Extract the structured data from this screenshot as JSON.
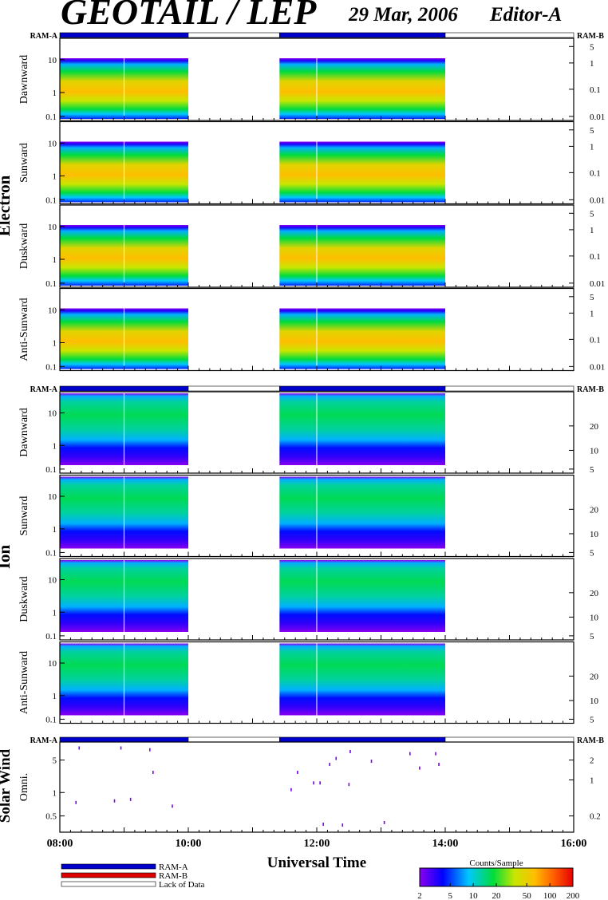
{
  "header": {
    "title": "GEOTAIL / LEP",
    "date": "29 Mar, 2006",
    "editor": "Editor-A"
  },
  "ram_labels": {
    "left": "RAM-A",
    "right": "RAM-B"
  },
  "groups": [
    {
      "name": "Electron",
      "panels": [
        {
          "label": "Dawnward",
          "left_ticks": [
            "10",
            "1",
            "0.1"
          ],
          "right_ticks": [
            "5",
            "1",
            "0.1",
            "0.01"
          ]
        },
        {
          "label": "Sunward",
          "left_ticks": [
            "10",
            "1",
            "0.1"
          ],
          "right_ticks": [
            "5",
            "1",
            "0.1",
            "0.01"
          ]
        },
        {
          "label": "Duskward",
          "left_ticks": [
            "10",
            "1",
            "0.1"
          ],
          "right_ticks": [
            "5",
            "1",
            "0.1",
            "0.01"
          ]
        },
        {
          "label": "Anti-Sunward",
          "left_ticks": [
            "10",
            "1",
            "0.1"
          ],
          "right_ticks": [
            "5",
            "1",
            "0.1",
            "0.01"
          ]
        }
      ]
    },
    {
      "name": "Ion",
      "panels": [
        {
          "label": "Dawnward",
          "left_ticks": [
            "10",
            "1",
            "0.1"
          ],
          "right_ticks": [
            "20",
            "10",
            "5"
          ]
        },
        {
          "label": "Sunward",
          "left_ticks": [
            "10",
            "1",
            "0.1"
          ],
          "right_ticks": [
            "20",
            "10",
            "5"
          ]
        },
        {
          "label": "Duskward",
          "left_ticks": [
            "10",
            "1",
            "0.1"
          ],
          "right_ticks": [
            "20",
            "10",
            "5"
          ]
        },
        {
          "label": "Anti-Sunward",
          "left_ticks": [
            "10",
            "1",
            "0.1"
          ],
          "right_ticks": [
            "20",
            "10",
            "5"
          ]
        }
      ]
    },
    {
      "name": "Solar Wind",
      "panels": [
        {
          "label": "Omni.",
          "left_ticks": [
            "5",
            "1",
            "0.5"
          ],
          "right_ticks": [
            "2",
            "1",
            "0.2"
          ]
        }
      ]
    }
  ],
  "chart_data": {
    "type": "heatmap",
    "x_range_hours": [
      8,
      16
    ],
    "x_tick_labels": [
      "08:00",
      "10:00",
      "12:00",
      "14:00",
      "16:00"
    ],
    "xlabel": "Universal Time",
    "data_intervals_ut": [
      [
        8.0,
        10.0
      ],
      [
        11.42,
        14.0
      ]
    ],
    "mode_bar": [
      {
        "mode": "RAM-A",
        "from": 8.0,
        "to": 10.0
      },
      {
        "mode": "Lack of Data",
        "from": 10.0,
        "to": 11.42
      },
      {
        "mode": "RAM-A",
        "from": 11.42,
        "to": 14.0
      },
      {
        "mode": "Lack of Data",
        "from": 14.0,
        "to": 16.0
      }
    ],
    "solar_wind_points": [
      {
        "t": 8.25,
        "v": 0.7
      },
      {
        "t": 8.3,
        "v": 7.0
      },
      {
        "t": 8.85,
        "v": 0.75
      },
      {
        "t": 8.95,
        "v": 7.0
      },
      {
        "t": 9.1,
        "v": 0.8
      },
      {
        "t": 9.4,
        "v": 6.5
      },
      {
        "t": 9.45,
        "v": 2.5
      },
      {
        "t": 9.75,
        "v": 0.6
      },
      {
        "t": 11.6,
        "v": 1.2
      },
      {
        "t": 11.7,
        "v": 2.5
      },
      {
        "t": 11.95,
        "v": 1.6
      },
      {
        "t": 12.05,
        "v": 1.6
      },
      {
        "t": 12.1,
        "v": 0.28
      },
      {
        "t": 12.2,
        "v": 3.5
      },
      {
        "t": 12.3,
        "v": 4.5
      },
      {
        "t": 12.4,
        "v": 0.27
      },
      {
        "t": 12.5,
        "v": 1.5
      },
      {
        "t": 12.52,
        "v": 6.0
      },
      {
        "t": 12.85,
        "v": 4.0
      },
      {
        "t": 13.05,
        "v": 0.3
      },
      {
        "t": 13.45,
        "v": 5.5
      },
      {
        "t": 13.6,
        "v": 3.0
      },
      {
        "t": 13.85,
        "v": 5.5
      },
      {
        "t": 13.9,
        "v": 3.5
      }
    ],
    "colorbar": {
      "title": "Counts/Sample",
      "ticks": [
        "2",
        "5",
        "10",
        "20",
        "50",
        "100",
        "200"
      ],
      "min": 2,
      "max": 200,
      "scale": "log"
    }
  },
  "legend": {
    "items": [
      {
        "label": "RAM-A",
        "color": "#0000cc"
      },
      {
        "label": "RAM-B",
        "color": "#dd0000"
      },
      {
        "label": "Lack of Data",
        "color": "#ffffff"
      }
    ]
  },
  "colors": {
    "ram_a": "#0000cc",
    "ram_b": "#dd0000",
    "solar_wind_point": "#7a00ee"
  }
}
